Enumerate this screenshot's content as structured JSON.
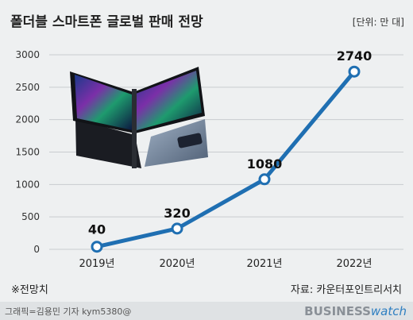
{
  "chart_data": {
    "type": "line",
    "title": "폴더블 스마트폰 글로벌 판매 전망",
    "unit": "[단위: 만 대]",
    "categories": [
      "2019년",
      "2020년",
      "2021년",
      "2022년"
    ],
    "values": [
      40,
      320,
      1080,
      2740
    ],
    "data_labels": [
      "40",
      "320",
      "1080",
      "2740"
    ],
    "yticks": [
      "0",
      "500",
      "1000",
      "1500",
      "2000",
      "2500",
      "3000"
    ],
    "ylim": [
      0,
      3000
    ],
    "grid": true,
    "line_color": "#1f6fb2"
  },
  "footnote": "※전망치",
  "source": "자료: 카운터포인트리서치",
  "credit": "그래픽=김용민 기자 kym5380@",
  "brand": {
    "part1": "BUSINESS",
    "part2": "watch"
  },
  "colors": {
    "background": "#eef0f1",
    "footer": "#dfe2e4",
    "grid": "#c8cccf",
    "text": "#222222"
  }
}
